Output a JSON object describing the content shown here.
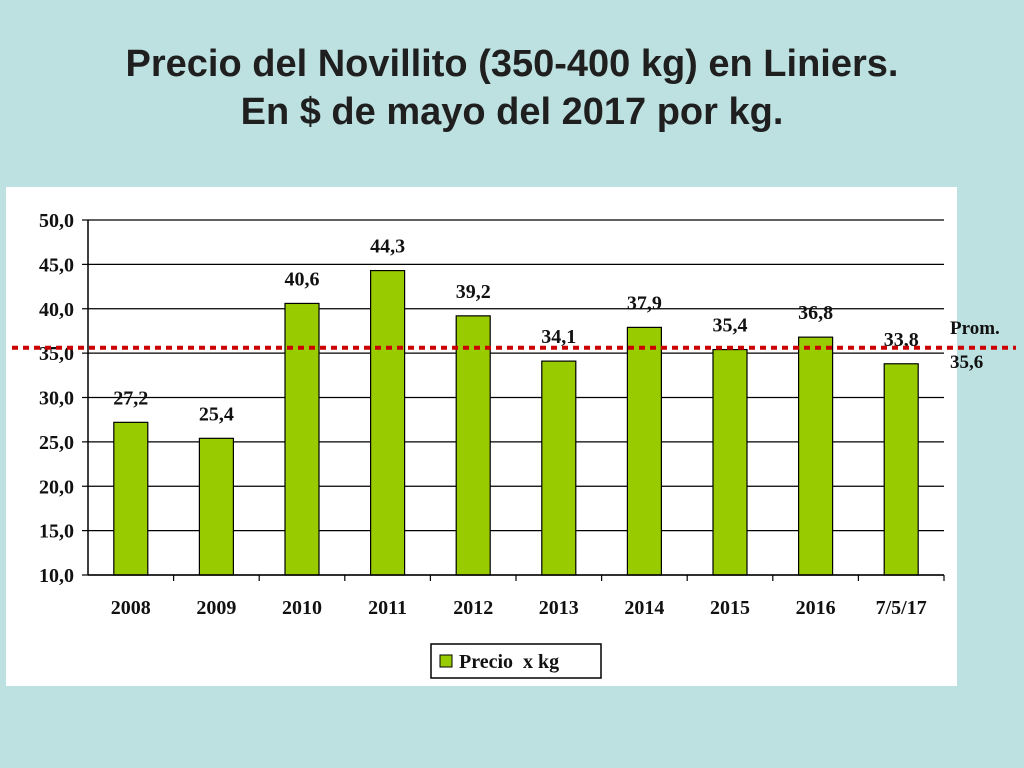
{
  "slide": {
    "title_line1": "Precio del Novillito (350-400 kg) en Liniers.",
    "title_line2": "En $ de mayo del 2017 por kg.",
    "background": "#bde0e0"
  },
  "chart_data": {
    "type": "bar",
    "categories": [
      "2008",
      "2009",
      "2010",
      "2011",
      "2012",
      "2013",
      "2014",
      "2015",
      "2016",
      "7/5/17"
    ],
    "series": [
      {
        "name": "Precio  x kg",
        "values": [
          27.2,
          25.4,
          40.6,
          44.3,
          39.2,
          34.1,
          37.9,
          35.4,
          36.8,
          33.8
        ],
        "labels": [
          "27,2",
          "25,4",
          "40,6",
          "44,3",
          "39,2",
          "34,1",
          "37,9",
          "35,4",
          "36,8",
          "33,8"
        ],
        "color": "#99cc00"
      }
    ],
    "ylim": [
      10,
      50
    ],
    "yticks": [
      "10,0",
      "15,0",
      "20,0",
      "25,0",
      "30,0",
      "35,0",
      "40,0",
      "45,0",
      "50,0"
    ],
    "grid": true,
    "legend": "bottom-center",
    "average_line": {
      "value": 35.6,
      "label_line1": "Prom.",
      "label_line2": "35,6",
      "color": "#cc0000"
    }
  }
}
